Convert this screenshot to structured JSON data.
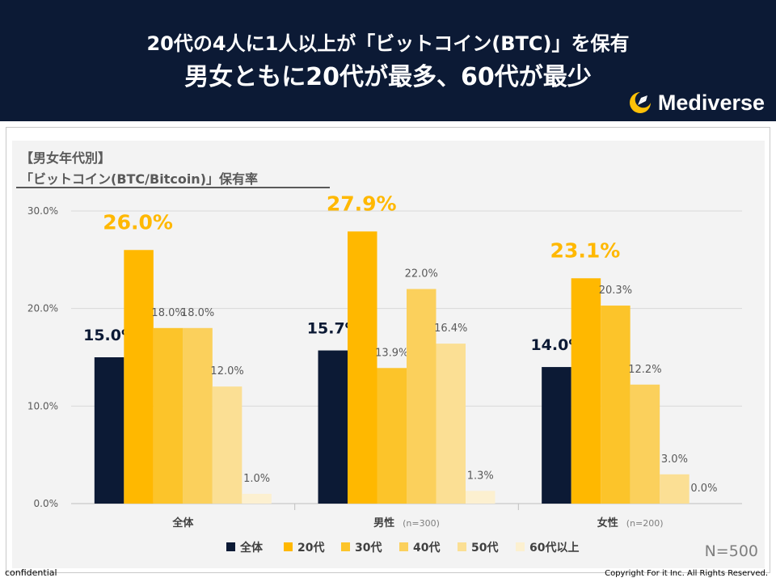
{
  "header": {
    "headline_line1": "20代の4人に1人以上が「ビットコイン(BTC)」を保有",
    "headline_line2": "男女ともに20代が最多、60代が最少",
    "logo_name": "Mediverse",
    "logo_icon": "rocket-moon-icon"
  },
  "subtitle": {
    "line1": "【男女年代別】",
    "line2": "「ビットコイン(BTC/Bitcoin)」保有率"
  },
  "chart_data": {
    "type": "bar",
    "categories": [
      "全体",
      "男性",
      "女性"
    ],
    "category_notes": [
      "",
      "(n=300)",
      "(n=200)"
    ],
    "series": [
      {
        "name": "全体",
        "values": [
          15.0,
          15.7,
          14.0
        ],
        "color": "#0c1a35"
      },
      {
        "name": "20代",
        "values": [
          26.0,
          27.9,
          23.1
        ],
        "color": "#ffb800"
      },
      {
        "name": "30代",
        "values": [
          18.0,
          13.9,
          20.3
        ],
        "color": "#fcc42a"
      },
      {
        "name": "40代",
        "values": [
          18.0,
          22.0,
          12.2
        ],
        "color": "#fbd05c"
      },
      {
        "name": "50代",
        "values": [
          12.0,
          16.4,
          3.0
        ],
        "color": "#fbdf94"
      },
      {
        "name": "60代以上",
        "values": [
          1.0,
          1.3,
          0.0
        ],
        "color": "#fcf0d0"
      }
    ],
    "ylim": [
      0,
      30
    ],
    "yticks": [
      0,
      10,
      20,
      30
    ],
    "ytick_labels": [
      "0.0%",
      "10.0%",
      "20.0%",
      "30.0%"
    ],
    "value_suffix": "%",
    "grid": true,
    "legend_position": "bottom",
    "annotation": "N=500",
    "highlight_colors": {
      "total_label": "#0c1a35",
      "age20_label": "#ffb800",
      "other_label": "#595959"
    }
  },
  "footer": {
    "left": "confidential",
    "right": "Copyright For it Inc. All Rights Reserved."
  }
}
